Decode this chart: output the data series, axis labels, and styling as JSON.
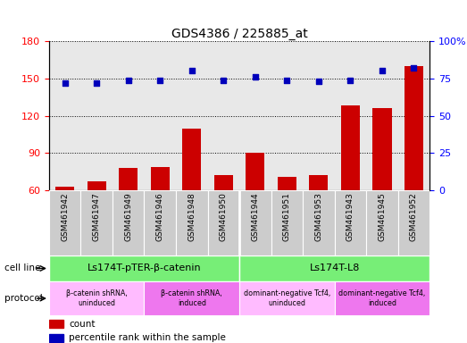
{
  "title": "GDS4386 / 225885_at",
  "samples": [
    "GSM461942",
    "GSM461947",
    "GSM461949",
    "GSM461946",
    "GSM461948",
    "GSM461950",
    "GSM461944",
    "GSM461951",
    "GSM461953",
    "GSM461943",
    "GSM461945",
    "GSM461952"
  ],
  "counts": [
    63,
    67,
    78,
    79,
    110,
    72,
    90,
    71,
    72,
    128,
    126,
    160
  ],
  "percentile": [
    72,
    72,
    74,
    74,
    80,
    74,
    76,
    74,
    73,
    74,
    80,
    82
  ],
  "ylim_left": [
    60,
    180
  ],
  "ylim_right": [
    0,
    100
  ],
  "yticks_left": [
    60,
    90,
    120,
    150,
    180
  ],
  "yticks_right": [
    0,
    25,
    50,
    75,
    100
  ],
  "ytick_right_labels": [
    "0",
    "25",
    "50",
    "75",
    "100%"
  ],
  "bar_color": "#cc0000",
  "dot_color": "#0000bb",
  "dot_size": 16,
  "cell_line_groups": [
    {
      "label": "Ls174T-pTER-β-catenin",
      "start": 0,
      "end": 5,
      "color": "#77ee77"
    },
    {
      "label": "Ls174T-L8",
      "start": 6,
      "end": 11,
      "color": "#77ee77"
    }
  ],
  "protocol_groups": [
    {
      "label": "β-catenin shRNA,\nuninduced",
      "start": 0,
      "end": 2,
      "color": "#ffbbff"
    },
    {
      "label": "β-catenin shRNA,\ninduced",
      "start": 3,
      "end": 5,
      "color": "#ee77ee"
    },
    {
      "label": "dominant-negative Tcf4,\nuninduced",
      "start": 6,
      "end": 8,
      "color": "#ffbbff"
    },
    {
      "label": "dominant-negative Tcf4,\ninduced",
      "start": 9,
      "end": 11,
      "color": "#ee77ee"
    }
  ],
  "legend_count_color": "#cc0000",
  "legend_pct_color": "#0000bb",
  "cell_line_label": "cell line",
  "protocol_label": "protocol",
  "legend_count_text": "count",
  "legend_pct_text": "percentile rank within the sample",
  "bg_color": "#ffffff",
  "plot_bg_color": "#e8e8e8",
  "xtick_bg_color": "#cccccc",
  "bar_width": 0.6
}
